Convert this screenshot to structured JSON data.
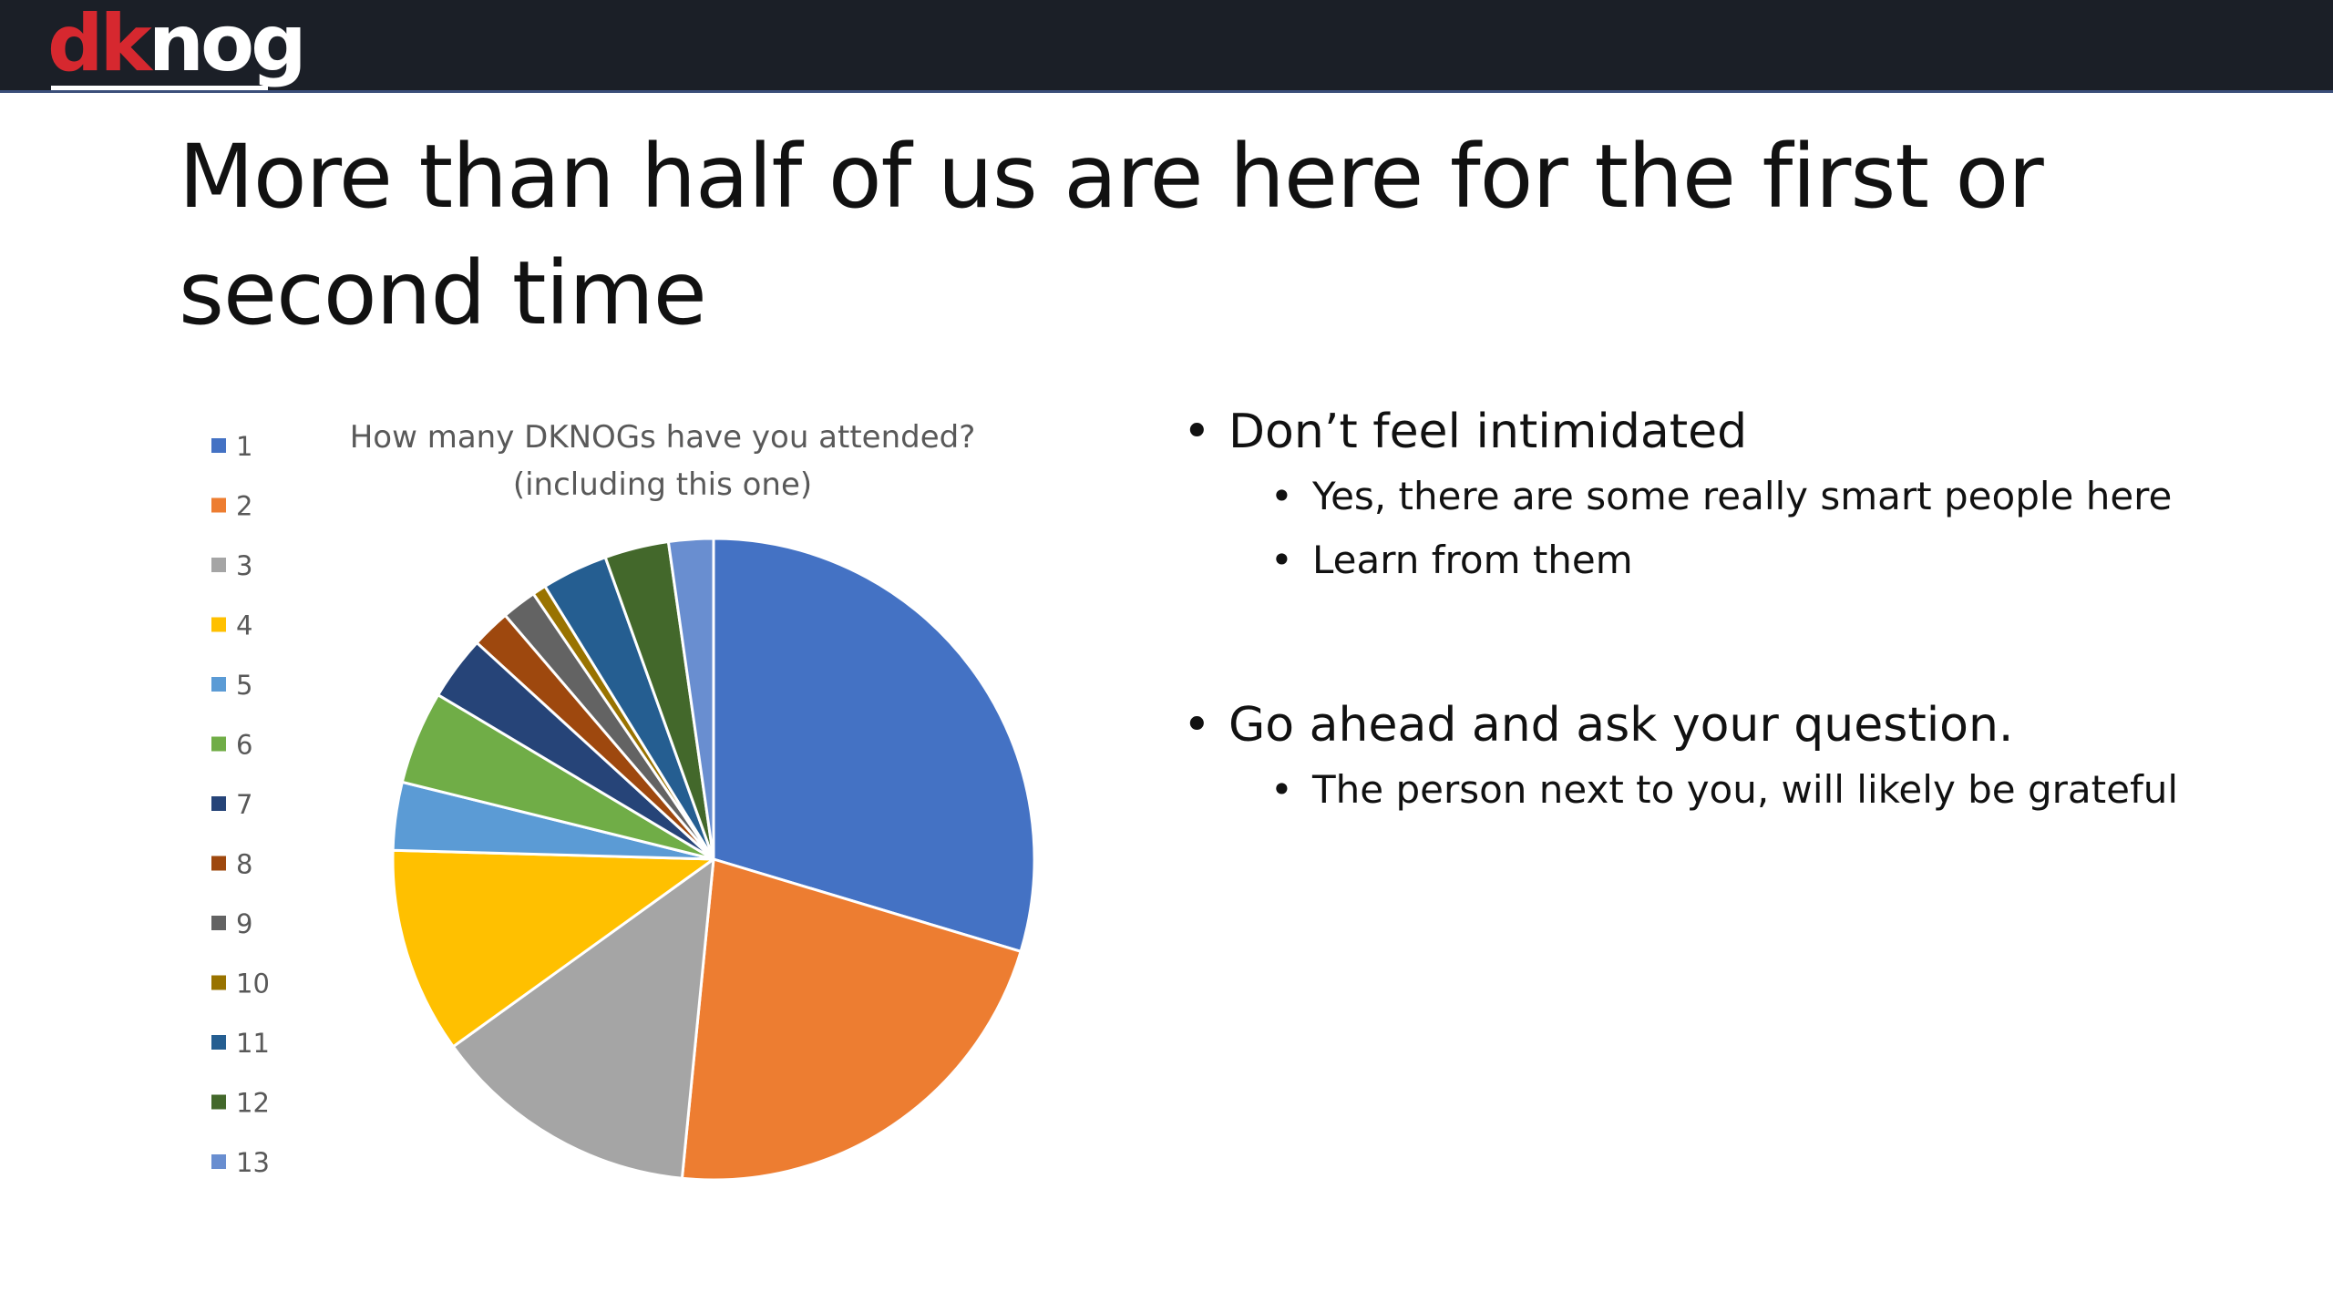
{
  "header": {
    "logo_part1": "dk",
    "logo_part2": "nog",
    "colors": {
      "bar": "#1b1f27",
      "logo_red": "#d6282f",
      "logo_white": "#ffffff"
    }
  },
  "slide": {
    "title": "More than half of us are here for the first or second time"
  },
  "bullets": [
    {
      "text": "Don’t feel intimidated",
      "sub": [
        "Yes, there are some really smart people here",
        "Learn from them"
      ]
    },
    {
      "text": "Go ahead and ask your question.",
      "sub": [
        "The person next to you, will likely be grateful"
      ]
    }
  ],
  "chart_data": {
    "type": "pie",
    "title": "How many DKNOGs have you attended? (including this one)",
    "title_lines": [
      "How many DKNOGs have you attended?",
      "(including this one)"
    ],
    "categories": [
      "1",
      "2",
      "3",
      "4",
      "5",
      "6",
      "7",
      "8",
      "9",
      "10",
      "11",
      "12",
      "13"
    ],
    "values": [
      30.3,
      22.4,
      13.8,
      10.6,
      3.5,
      4.8,
      3.3,
      2.0,
      1.8,
      0.7,
      3.4,
      3.3,
      2.3
    ],
    "value_unit": "percent",
    "start_angle_deg": 0,
    "direction": "clockwise",
    "colors": [
      "#4472c4",
      "#ed7d31",
      "#a5a5a5",
      "#ffc000",
      "#5b9bd5",
      "#70ad47",
      "#264478",
      "#9e480e",
      "#636363",
      "#997300",
      "#255e91",
      "#43682b",
      "#698ed0"
    ],
    "legend": "left"
  }
}
